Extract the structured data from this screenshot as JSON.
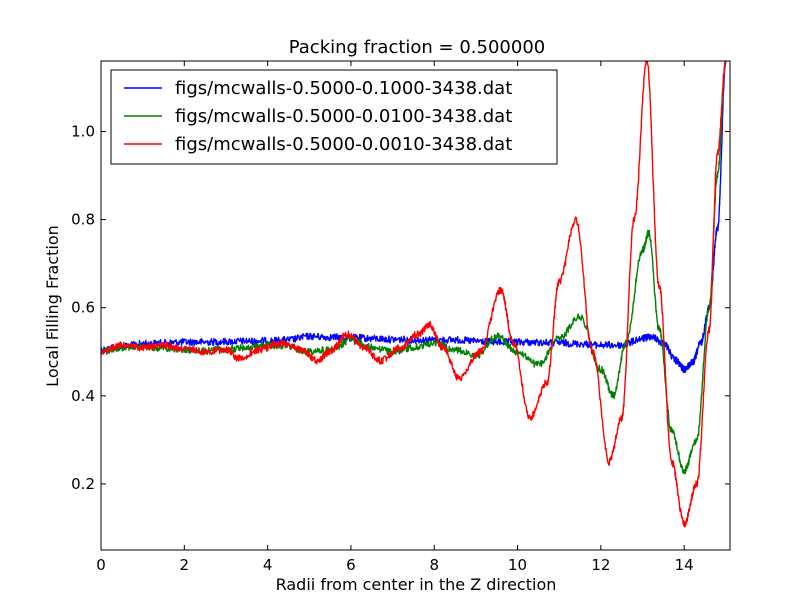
{
  "chart_data": {
    "type": "line",
    "title": "Packing fraction = 0.500000",
    "xlabel": "Radii from center in the Z direction",
    "ylabel": "Local Filling Fraction",
    "xlim": [
      0,
      15.1
    ],
    "ylim": [
      0.05,
      1.16
    ],
    "xticks": [
      0,
      2,
      4,
      6,
      8,
      10,
      12,
      14
    ],
    "yticks": [
      0.2,
      0.4,
      0.6,
      0.8,
      1.0
    ],
    "xtick_labels": [
      "0",
      "2",
      "4",
      "6",
      "8",
      "10",
      "12",
      "14"
    ],
    "ytick_labels": [
      "0.2",
      "0.4",
      "0.6",
      "0.8",
      "1.0"
    ],
    "grid": false,
    "legend_position": "top-left",
    "series": [
      {
        "name": "figs/mcwalls-0.5000-0.1000-3438.dat",
        "color": "#0000ff",
        "x": [
          0,
          0.5,
          1,
          1.5,
          2,
          2.5,
          3,
          3.5,
          4,
          4.5,
          5,
          5.5,
          6,
          6.5,
          7,
          7.5,
          8,
          8.5,
          9,
          9.5,
          10,
          10.5,
          11,
          11.5,
          12,
          12.5,
          13,
          13.2,
          13.5,
          13.8,
          14,
          14.2,
          14.4,
          14.6,
          14.8,
          15.0
        ],
        "y": [
          0.505,
          0.512,
          0.518,
          0.52,
          0.522,
          0.522,
          0.523,
          0.524,
          0.525,
          0.527,
          0.535,
          0.533,
          0.532,
          0.53,
          0.528,
          0.527,
          0.527,
          0.527,
          0.524,
          0.522,
          0.522,
          0.521,
          0.52,
          0.518,
          0.515,
          0.515,
          0.53,
          0.535,
          0.52,
          0.48,
          0.46,
          0.475,
          0.52,
          0.6,
          0.78,
          1.16
        ]
      },
      {
        "name": "figs/mcwalls-0.5000-0.0100-3438.dat",
        "color": "#008000",
        "x": [
          0,
          0.5,
          1,
          1.5,
          2,
          2.5,
          3,
          3.5,
          4,
          4.5,
          5,
          5.5,
          6,
          6.5,
          7,
          7.5,
          8,
          8.5,
          9,
          9.5,
          10,
          10.5,
          11,
          11.5,
          12,
          12.3,
          12.6,
          13.0,
          13.15,
          13.4,
          13.7,
          14.0,
          14.3,
          14.6,
          14.8,
          15.0
        ],
        "y": [
          0.5,
          0.51,
          0.512,
          0.508,
          0.505,
          0.502,
          0.506,
          0.51,
          0.515,
          0.512,
          0.5,
          0.505,
          0.525,
          0.51,
          0.5,
          0.51,
          0.52,
          0.505,
          0.49,
          0.535,
          0.5,
          0.47,
          0.53,
          0.58,
          0.46,
          0.4,
          0.52,
          0.73,
          0.77,
          0.55,
          0.32,
          0.23,
          0.3,
          0.6,
          0.9,
          1.16
        ]
      },
      {
        "name": "figs/mcwalls-0.5000-0.0010-3438.dat",
        "color": "#ff0000",
        "x": [
          0,
          0.5,
          1,
          1.5,
          2,
          2.5,
          3,
          3.3,
          3.8,
          4.3,
          4.8,
          5.2,
          5.5,
          5.9,
          6.3,
          6.7,
          7.2,
          7.6,
          7.9,
          8.2,
          8.6,
          9.1,
          9.6,
          9.9,
          10.3,
          10.7,
          11.0,
          11.4,
          11.8,
          12.2,
          12.5,
          12.8,
          13.1,
          13.4,
          13.7,
          14.0,
          14.3,
          14.6,
          14.8,
          15.0
        ],
        "y": [
          0.5,
          0.515,
          0.51,
          0.515,
          0.505,
          0.5,
          0.505,
          0.485,
          0.505,
          0.52,
          0.505,
          0.48,
          0.5,
          0.54,
          0.51,
          0.48,
          0.51,
          0.54,
          0.56,
          0.51,
          0.44,
          0.5,
          0.64,
          0.52,
          0.35,
          0.43,
          0.66,
          0.8,
          0.5,
          0.25,
          0.35,
          0.8,
          1.16,
          0.65,
          0.25,
          0.11,
          0.2,
          0.55,
          0.95,
          1.16
        ]
      }
    ]
  }
}
